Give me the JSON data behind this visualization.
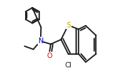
{
  "bg_color": "#ffffff",
  "bond_color": "#1a1a1a",
  "bond_lw": 1.2,
  "font_size": 6.5,
  "figsize": [
    1.49,
    0.97
  ],
  "dpi": 100,
  "atom_colors": {
    "O": "#ee0000",
    "N": "#0000bb",
    "S": "#bbaa00",
    "Cl": "#1a1a1a"
  }
}
